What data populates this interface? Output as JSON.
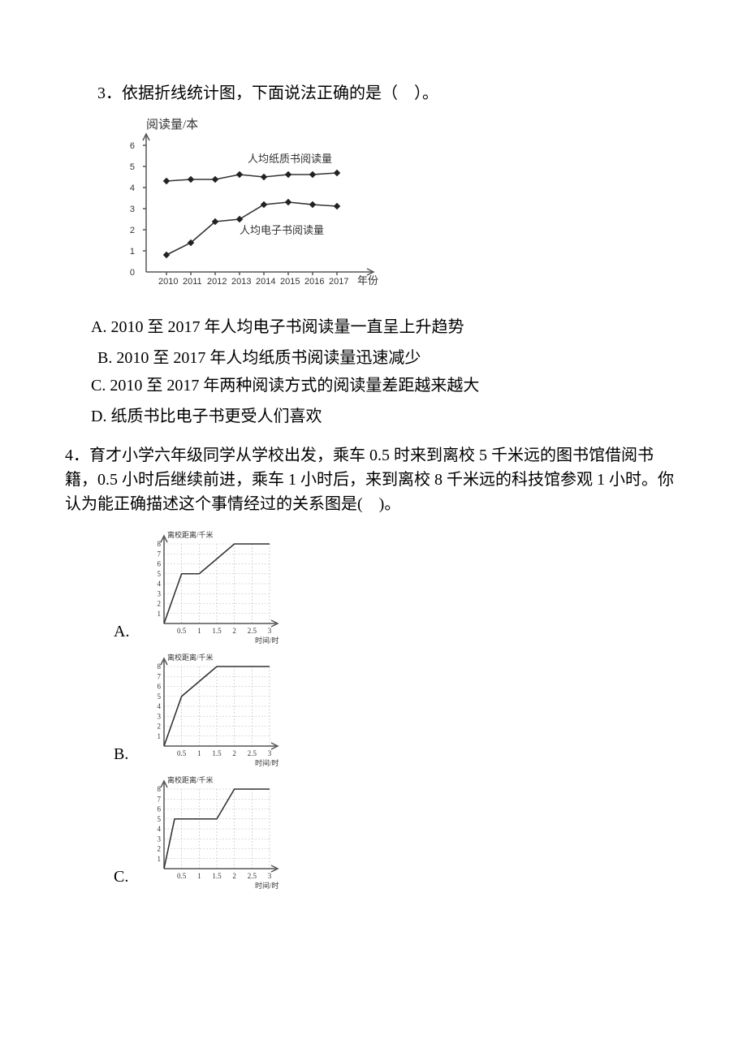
{
  "q3": {
    "stem": "3．依据折线统计图，下面说法正确的是（　）。",
    "chart": {
      "type": "line",
      "y_title": "阅读量/本",
      "x_title": "年份",
      "x_labels": [
        "2010",
        "2011",
        "2012",
        "2013",
        "2014",
        "2015",
        "2016",
        "2017"
      ],
      "y_ticks": [
        0,
        1,
        2,
        3,
        4,
        5,
        6
      ],
      "series": [
        {
          "name": "人均纸质书阅读量",
          "values": [
            4.3,
            4.4,
            4.4,
            4.6,
            4.5,
            4.6,
            4.6,
            4.7
          ],
          "color": "#333333"
        },
        {
          "name": "人均电子书阅读量",
          "values": [
            0.8,
            1.4,
            2.4,
            2.5,
            3.2,
            3.3,
            3.2,
            3.1
          ],
          "color": "#333333"
        }
      ],
      "background_color": "#ffffff",
      "marker": "diamond",
      "marker_size": 4,
      "line_width": 1.6,
      "ylim": [
        0,
        6
      ]
    },
    "options": {
      "A": "A. 2010 至 2017 年人均电子书阅读量一直呈上升趋势",
      "B": "B. 2010 至 2017 年人均纸质书阅读量迅速减少",
      "C": "C. 2010 至 2017 年两种阅读方式的阅读量差距越来越大",
      "D": "D. 纸质书比电子书更受人们喜欢"
    }
  },
  "q4": {
    "stem": "4．育才小学六年级同学从学校出发，乘车 0.5 时来到离校 5 千米远的图书馆借阅书籍，0.5 小时后继续前进，乘车 1 小时后，来到离校 8 千米远的科技馆参观 1 小时。你认为能正确描述这个事情经过的关系图是(　)。",
    "mini": {
      "y_title": "离校距离/千米",
      "x_title": "时间/时",
      "x_ticks": [
        "0.5",
        "1",
        "1.5",
        "2",
        "2.5",
        "3"
      ],
      "y_ticks": [
        "1",
        "2",
        "3",
        "4",
        "5",
        "6",
        "7",
        "8"
      ],
      "grid_color": "#bbbbbb",
      "line_color": "#333333",
      "line_width": 1.8,
      "ylim": [
        0,
        8
      ],
      "xlim": [
        0,
        3
      ]
    },
    "options": {
      "A": {
        "label": "A.",
        "points": [
          [
            0,
            0
          ],
          [
            0.5,
            5
          ],
          [
            1,
            5
          ],
          [
            2,
            8
          ],
          [
            3,
            8
          ]
        ]
      },
      "B": {
        "label": "B.",
        "points": [
          [
            0,
            0
          ],
          [
            0.5,
            5
          ],
          [
            1.5,
            8
          ],
          [
            3,
            8
          ]
        ]
      },
      "C": {
        "label": "C.",
        "points": [
          [
            0,
            0
          ],
          [
            0.3,
            5
          ],
          [
            1.5,
            5
          ],
          [
            2,
            8
          ],
          [
            3,
            8
          ]
        ]
      }
    }
  }
}
